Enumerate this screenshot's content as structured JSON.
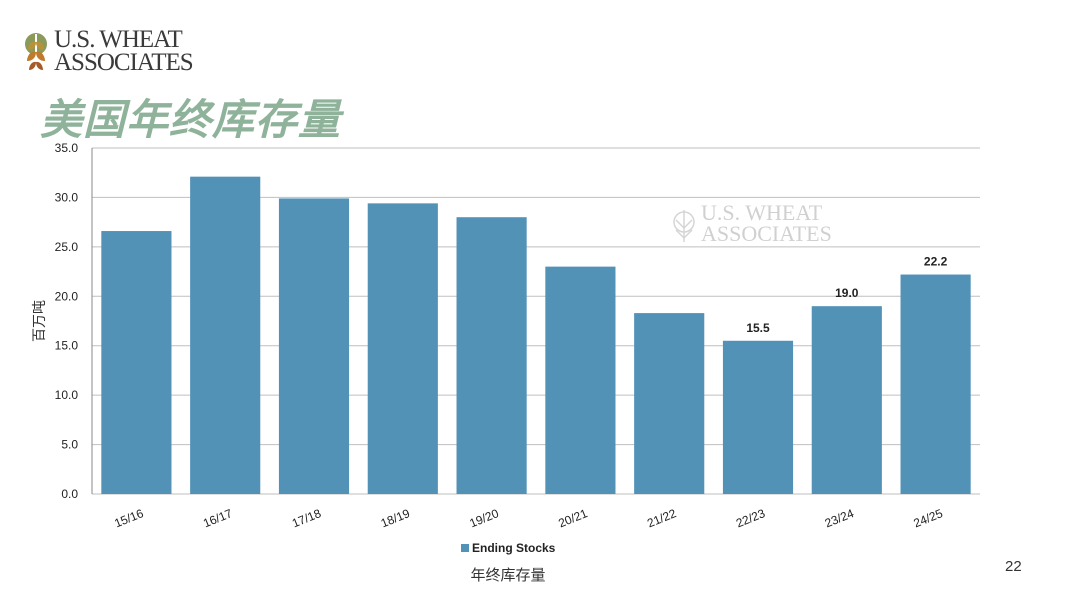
{
  "brand": {
    "line1": "U.S. WHEAT",
    "line2": "ASSOCIATES"
  },
  "slide": {
    "title": "美国年终库存量",
    "page_number": "22"
  },
  "colors": {
    "bar": "#5292b7",
    "title": "#8fb29a",
    "grid": "#bfbfbf"
  },
  "chart_data": {
    "type": "bar",
    "categories": [
      "15/16",
      "16/17",
      "17/18",
      "18/19",
      "19/20",
      "20/21",
      "21/22",
      "22/23",
      "23/24",
      "24/25"
    ],
    "series": [
      {
        "name": "Ending Stocks",
        "values": [
          26.6,
          32.1,
          29.9,
          29.4,
          28.0,
          23.0,
          18.3,
          15.5,
          19.0,
          22.2
        ]
      }
    ],
    "data_labels": {
      "22/23": "15.5",
      "23/24": "19.0",
      "24/25": "22.2"
    },
    "ylabel": "百万吨",
    "xlabel": "年终库存量",
    "ylim": [
      0,
      35
    ],
    "yticks": [
      "0.0",
      "5.0",
      "10.0",
      "15.0",
      "20.0",
      "25.0",
      "30.0",
      "35.0"
    ],
    "grid": true,
    "legend_position": "bottom"
  }
}
